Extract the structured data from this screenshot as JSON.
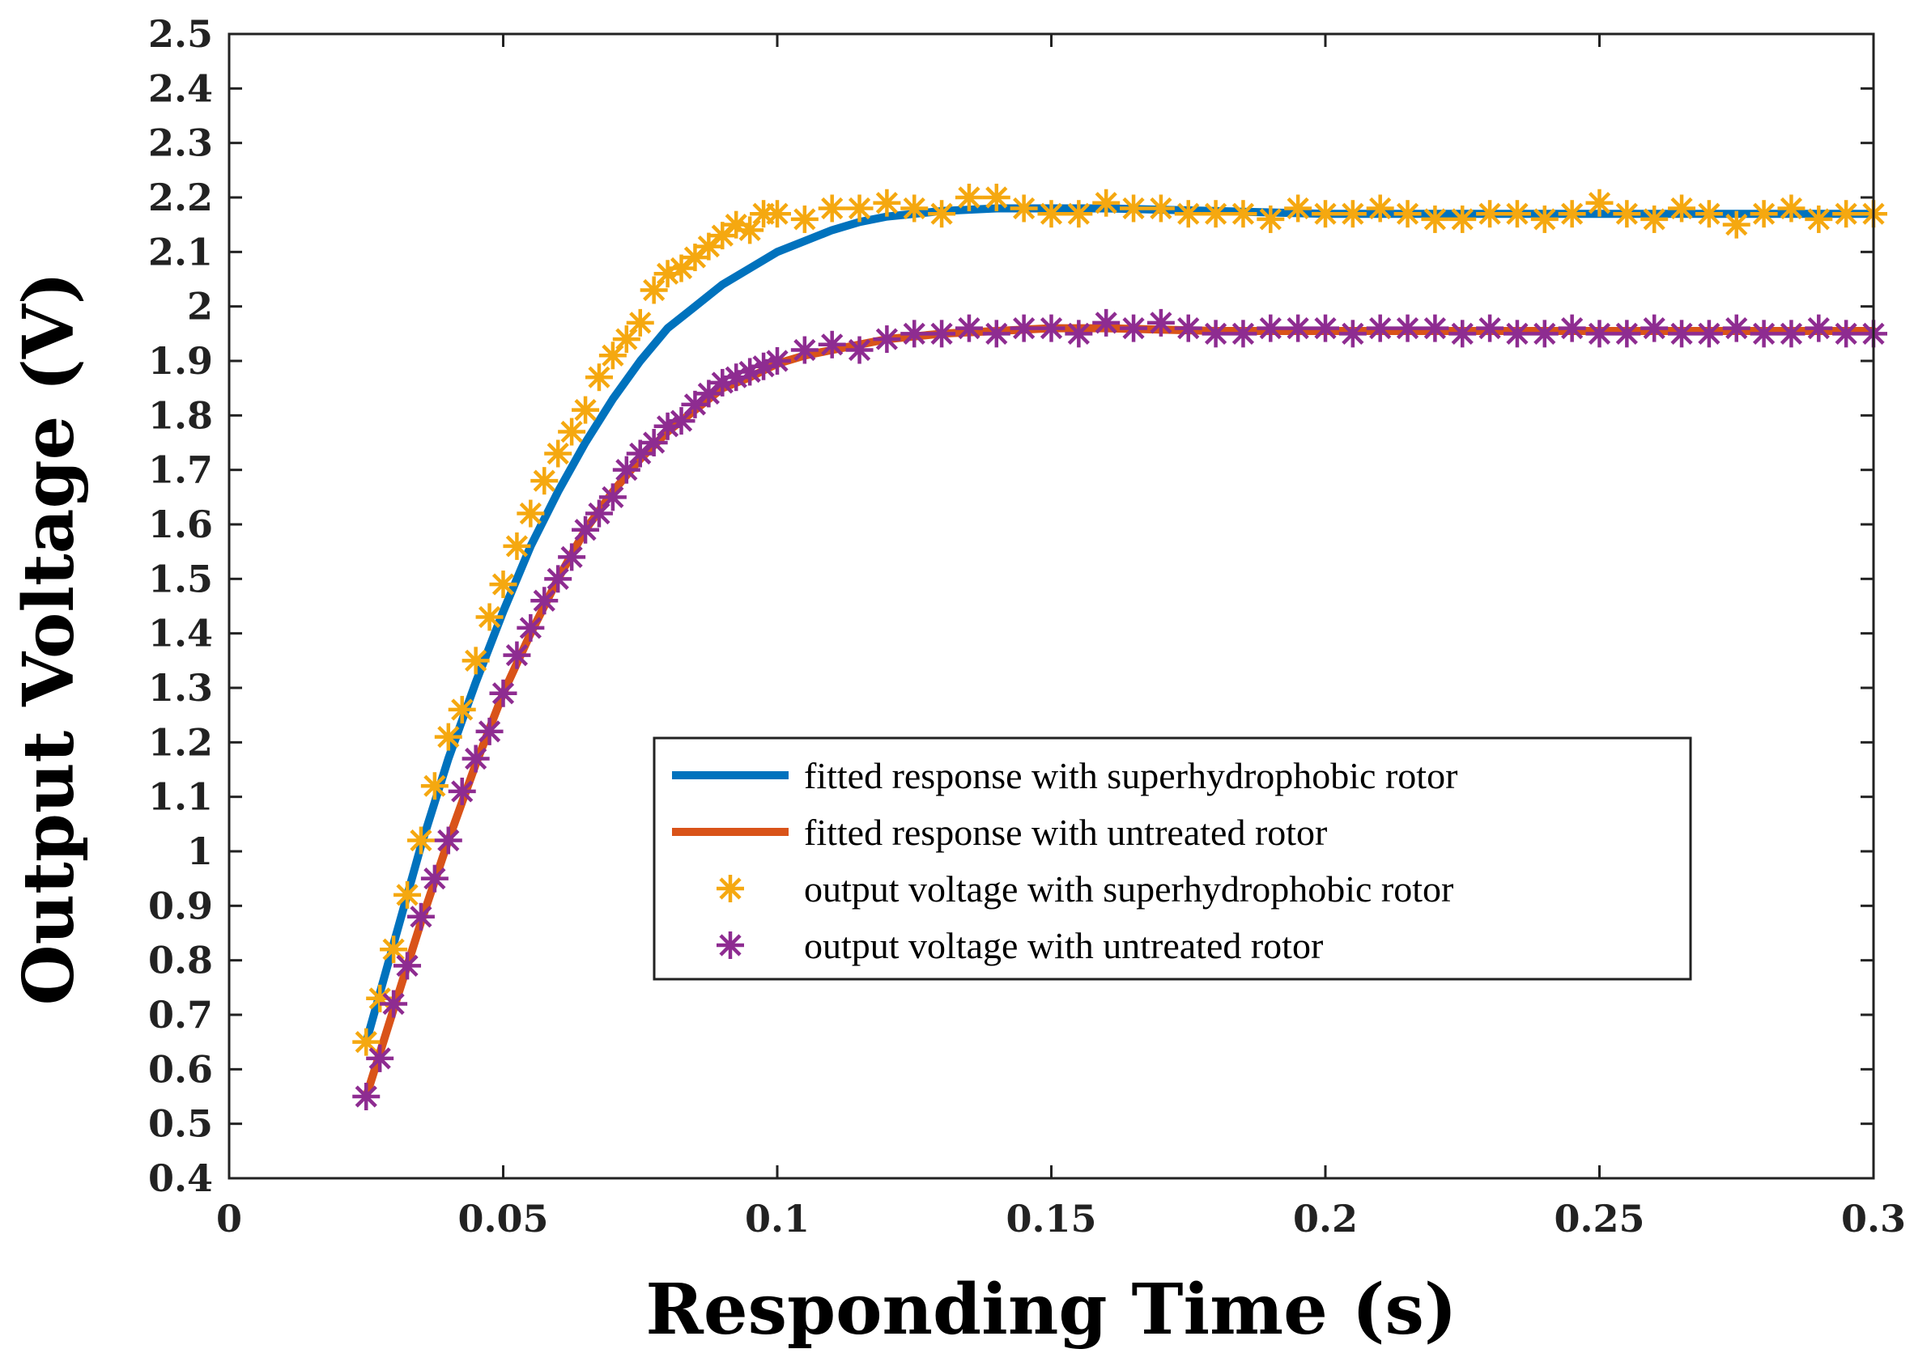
{
  "chart_data": {
    "type": "line",
    "title": "",
    "xlabel": "Responding Time (s)",
    "ylabel": "Output Voltage (V)",
    "xlim": [
      0,
      0.3
    ],
    "ylim": [
      0.4,
      2.5
    ],
    "grid": false,
    "legend_position": "center-right",
    "x_ticks": [
      "0",
      "0.05",
      "0.1",
      "0.15",
      "0.2",
      "0.25",
      "0.3"
    ],
    "y_ticks": [
      "0.4",
      "0.5",
      "0.6",
      "0.7",
      "0.8",
      "0.9",
      "1",
      "1.1",
      "1.2",
      "1.3",
      "1.4",
      "1.5",
      "1.6",
      "1.7",
      "1.8",
      "1.9",
      "2",
      "2.1",
      "2.2",
      "2.3",
      "2.4",
      "2.5"
    ],
    "series": [
      {
        "name": "fitted response with superhydrophobic rotor",
        "kind": "line",
        "color": "#0072BD",
        "x": [
          0.025,
          0.03,
          0.035,
          0.04,
          0.045,
          0.05,
          0.055,
          0.06,
          0.065,
          0.07,
          0.075,
          0.08,
          0.085,
          0.09,
          0.095,
          0.1,
          0.105,
          0.11,
          0.115,
          0.12,
          0.13,
          0.14,
          0.15,
          0.16,
          0.18,
          0.2,
          0.22,
          0.24,
          0.26,
          0.28,
          0.3
        ],
        "y": [
          0.65,
          0.83,
          1.01,
          1.17,
          1.31,
          1.44,
          1.56,
          1.66,
          1.75,
          1.83,
          1.9,
          1.96,
          2.0,
          2.04,
          2.07,
          2.1,
          2.12,
          2.14,
          2.155,
          2.165,
          2.175,
          2.18,
          2.18,
          2.18,
          2.175,
          2.17,
          2.17,
          2.17,
          2.17,
          2.17,
          2.17
        ]
      },
      {
        "name": "fitted response with untreated rotor",
        "kind": "line",
        "color": "#D95319",
        "x": [
          0.025,
          0.03,
          0.035,
          0.04,
          0.045,
          0.05,
          0.055,
          0.06,
          0.065,
          0.07,
          0.075,
          0.08,
          0.085,
          0.09,
          0.095,
          0.1,
          0.105,
          0.11,
          0.115,
          0.12,
          0.13,
          0.14,
          0.15,
          0.16,
          0.18,
          0.2,
          0.22,
          0.24,
          0.26,
          0.28,
          0.3
        ],
        "y": [
          0.55,
          0.71,
          0.87,
          1.02,
          1.16,
          1.29,
          1.4,
          1.5,
          1.59,
          1.66,
          1.72,
          1.77,
          1.81,
          1.85,
          1.87,
          1.895,
          1.91,
          1.92,
          1.93,
          1.94,
          1.95,
          1.955,
          1.96,
          1.96,
          1.955,
          1.955,
          1.955,
          1.955,
          1.955,
          1.955,
          1.955
        ]
      },
      {
        "name": "output voltage with superhydrophobic rotor",
        "kind": "markers",
        "marker": "asterisk",
        "color": "#F5A810",
        "x": [
          0.025,
          0.0275,
          0.03,
          0.0325,
          0.035,
          0.0375,
          0.04,
          0.0425,
          0.045,
          0.0475,
          0.05,
          0.0525,
          0.055,
          0.0575,
          0.06,
          0.0625,
          0.065,
          0.0675,
          0.07,
          0.0725,
          0.075,
          0.0775,
          0.08,
          0.0825,
          0.085,
          0.0875,
          0.09,
          0.0925,
          0.095,
          0.0975,
          0.1,
          0.105,
          0.11,
          0.115,
          0.12,
          0.125,
          0.13,
          0.135,
          0.14,
          0.145,
          0.15,
          0.155,
          0.16,
          0.165,
          0.17,
          0.175,
          0.18,
          0.185,
          0.19,
          0.195,
          0.2,
          0.205,
          0.21,
          0.215,
          0.22,
          0.225,
          0.23,
          0.235,
          0.24,
          0.245,
          0.25,
          0.255,
          0.26,
          0.265,
          0.27,
          0.275,
          0.28,
          0.285,
          0.29,
          0.295,
          0.3
        ],
        "y": [
          0.65,
          0.73,
          0.82,
          0.92,
          1.02,
          1.12,
          1.21,
          1.26,
          1.35,
          1.43,
          1.49,
          1.56,
          1.62,
          1.68,
          1.73,
          1.77,
          1.81,
          1.87,
          1.91,
          1.94,
          1.97,
          2.03,
          2.06,
          2.07,
          2.09,
          2.11,
          2.13,
          2.15,
          2.14,
          2.17,
          2.17,
          2.16,
          2.18,
          2.18,
          2.19,
          2.18,
          2.17,
          2.2,
          2.2,
          2.18,
          2.17,
          2.17,
          2.19,
          2.18,
          2.18,
          2.17,
          2.17,
          2.17,
          2.16,
          2.18,
          2.17,
          2.17,
          2.18,
          2.17,
          2.16,
          2.16,
          2.17,
          2.17,
          2.16,
          2.17,
          2.19,
          2.17,
          2.16,
          2.18,
          2.17,
          2.15,
          2.17,
          2.18,
          2.16,
          2.17,
          2.17
        ]
      },
      {
        "name": "output voltage with untreated rotor",
        "kind": "markers",
        "marker": "asterisk",
        "color": "#8E2C91",
        "x": [
          0.025,
          0.0275,
          0.03,
          0.0325,
          0.035,
          0.0375,
          0.04,
          0.0425,
          0.045,
          0.0475,
          0.05,
          0.0525,
          0.055,
          0.0575,
          0.06,
          0.0625,
          0.065,
          0.0675,
          0.07,
          0.0725,
          0.075,
          0.0775,
          0.08,
          0.0825,
          0.085,
          0.0875,
          0.09,
          0.0925,
          0.095,
          0.0975,
          0.1,
          0.105,
          0.11,
          0.115,
          0.12,
          0.125,
          0.13,
          0.135,
          0.14,
          0.145,
          0.15,
          0.155,
          0.16,
          0.165,
          0.17,
          0.175,
          0.18,
          0.185,
          0.19,
          0.195,
          0.2,
          0.205,
          0.21,
          0.215,
          0.22,
          0.225,
          0.23,
          0.235,
          0.24,
          0.245,
          0.25,
          0.255,
          0.26,
          0.265,
          0.27,
          0.275,
          0.28,
          0.285,
          0.29,
          0.295,
          0.3
        ],
        "y": [
          0.55,
          0.62,
          0.72,
          0.79,
          0.88,
          0.95,
          1.02,
          1.11,
          1.17,
          1.22,
          1.29,
          1.36,
          1.41,
          1.46,
          1.5,
          1.54,
          1.59,
          1.62,
          1.65,
          1.7,
          1.73,
          1.75,
          1.78,
          1.79,
          1.82,
          1.84,
          1.86,
          1.87,
          1.88,
          1.89,
          1.9,
          1.92,
          1.93,
          1.92,
          1.94,
          1.95,
          1.95,
          1.96,
          1.95,
          1.96,
          1.96,
          1.95,
          1.97,
          1.96,
          1.97,
          1.96,
          1.95,
          1.95,
          1.96,
          1.96,
          1.96,
          1.95,
          1.96,
          1.96,
          1.96,
          1.95,
          1.96,
          1.95,
          1.95,
          1.96,
          1.95,
          1.95,
          1.96,
          1.95,
          1.95,
          1.96,
          1.95,
          1.95,
          1.96,
          1.95,
          1.95
        ]
      }
    ]
  }
}
